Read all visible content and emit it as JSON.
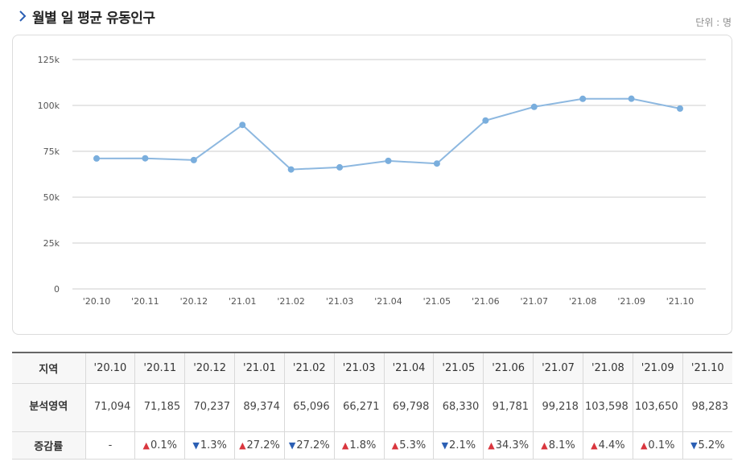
{
  "header": {
    "title": "월별 일 평균 유동인구",
    "unit": "단위 : 명"
  },
  "colors": {
    "line": "#8db8e0",
    "point": "#7aaedd",
    "grid": "#cccccc",
    "up": "#d9363e",
    "down": "#2b5fb4"
  },
  "icons": {
    "title_chevron": "chevron-right-icon"
  },
  "chart_data": {
    "type": "line",
    "categories": [
      "'20.10",
      "'20.11",
      "'20.12",
      "'21.01",
      "'21.02",
      "'21.03",
      "'21.04",
      "'21.05",
      "'21.06",
      "'21.07",
      "'21.08",
      "'21.09",
      "'21.10"
    ],
    "series": [
      {
        "values": [
          71094,
          71185,
          70237,
          89374,
          65096,
          66271,
          69798,
          68330,
          91781,
          99218,
          103598,
          103650,
          98283
        ]
      }
    ],
    "ylim": [
      0,
      125000
    ],
    "yticks": [
      0,
      25000,
      50000,
      75000,
      100000,
      125000
    ],
    "ytick_labels": [
      "0",
      "25k",
      "50k",
      "75k",
      "100k",
      "125k"
    ],
    "grid": true,
    "legend": "none"
  },
  "table": {
    "row_head_label": "지역",
    "columns": [
      "'20.10",
      "'20.11",
      "'20.12",
      "'21.01",
      "'21.02",
      "'21.03",
      "'21.04",
      "'21.05",
      "'21.06",
      "'21.07",
      "'21.08",
      "'21.09",
      "'21.10"
    ],
    "values_label": "분석영역",
    "values": [
      "71,094",
      "71,185",
      "70,237",
      "89,374",
      "65,096",
      "66,271",
      "69,798",
      "68,330",
      "91,781",
      "99,218",
      "103,598",
      "103,650",
      "98,283"
    ],
    "rates_label": "증감률",
    "rates": [
      {
        "dir": "",
        "text": "-"
      },
      {
        "dir": "up",
        "text": "0.1%"
      },
      {
        "dir": "down",
        "text": "1.3%"
      },
      {
        "dir": "up",
        "text": "27.2%"
      },
      {
        "dir": "down",
        "text": "27.2%"
      },
      {
        "dir": "up",
        "text": "1.8%"
      },
      {
        "dir": "up",
        "text": "5.3%"
      },
      {
        "dir": "down",
        "text": "2.1%"
      },
      {
        "dir": "up",
        "text": "34.3%"
      },
      {
        "dir": "up",
        "text": "8.1%"
      },
      {
        "dir": "up",
        "text": "4.4%"
      },
      {
        "dir": "up",
        "text": "0.1%"
      },
      {
        "dir": "down",
        "text": "5.2%"
      }
    ]
  }
}
